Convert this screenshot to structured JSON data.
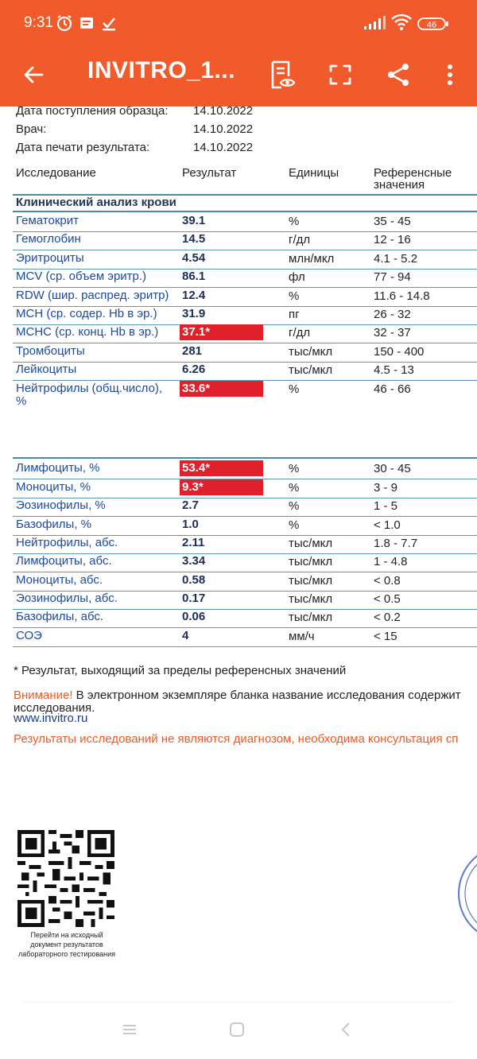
{
  "status_bar": {
    "time": "9:31",
    "battery": "46",
    "left_icons": [
      "alarm-icon",
      "notification-icon",
      "download-done-icon"
    ],
    "right_icons": [
      "signal-icon",
      "wifi-icon",
      "battery-icon"
    ]
  },
  "app_bar": {
    "title": "INVITRO_1...",
    "icons": [
      "back-arrow-icon",
      "reading-mode-icon",
      "fullscreen-icon",
      "share-icon",
      "more-icon"
    ]
  },
  "document": {
    "meta": [
      {
        "label": "Дата поступления образца:",
        "value": "14.10.2022"
      },
      {
        "label": "Врач:",
        "value": "14.10.2022"
      },
      {
        "label": "Дата печати результата:",
        "value": "14.10.2022"
      }
    ],
    "headers": {
      "test": "Исследование",
      "result": "Результат",
      "units": "Единицы",
      "ref_line1": "Референсные",
      "ref_line2": "значения"
    },
    "section_title": "Клинический анализ крови",
    "rows_a": [
      {
        "name": "Гематокрит",
        "value": "39.1",
        "unit": "%",
        "ref": "35 - 45",
        "flag": false
      },
      {
        "name": "Гемоглобин",
        "value": "14.5",
        "unit": "г/дл",
        "ref": "12 - 16",
        "flag": false
      },
      {
        "name": "Эритроциты",
        "value": "4.54",
        "unit": "млн/мкл",
        "ref": "4.1 - 5.2",
        "flag": false
      },
      {
        "name": "MCV (ср. объем эритр.)",
        "value": "86.1",
        "unit": "фл",
        "ref": "77 - 94",
        "flag": false
      },
      {
        "name": "RDW (шир. распред. эритр)",
        "value": "12.4",
        "unit": "%",
        "ref": "11.6 - 14.8",
        "flag": false
      },
      {
        "name": "MCH (ср. содер. Hb в эр.)",
        "value": "31.9",
        "unit": "пг",
        "ref": "26 - 32",
        "flag": false
      },
      {
        "name": "MCHC (ср. конц. Hb в эр.)",
        "value": "37.1*",
        "unit": "г/дл",
        "ref": "32 - 37",
        "flag": true
      },
      {
        "name": "Тромбоциты",
        "value": "281",
        "unit": "тыс/мкл",
        "ref": "150 - 400",
        "flag": false
      },
      {
        "name": "Лейкоциты",
        "value": "6.26",
        "unit": "тыс/мкл",
        "ref": "4.5 - 13",
        "flag": false
      }
    ],
    "neutro_pct": {
      "name_line1": "Нейтрофилы (общ.число),",
      "name_line2": "%",
      "value": "33.6*",
      "unit": "%",
      "ref": "46 - 66"
    },
    "rows_b": [
      {
        "name": "Лимфоциты, %",
        "value": "53.4*",
        "unit": "%",
        "ref": "30 - 45",
        "flag": true
      },
      {
        "name": "Моноциты, %",
        "value": "9.3*",
        "unit": "%",
        "ref": "3 - 9",
        "flag": true
      },
      {
        "name": "Эозинофилы, %",
        "value": "2.7",
        "unit": "%",
        "ref": "1 - 5",
        "flag": false
      },
      {
        "name": "Базофилы, %",
        "value": "1.0",
        "unit": "%",
        "ref": "< 1.0",
        "flag": false
      },
      {
        "name": "Нейтрофилы, абс.",
        "value": "2.11",
        "unit": "тыс/мкл",
        "ref": "1.8 - 7.7",
        "flag": false
      },
      {
        "name": "Лимфоциты, абс.",
        "value": "3.34",
        "unit": "тыс/мкл",
        "ref": "1 - 4.8",
        "flag": false
      },
      {
        "name": "Моноциты, абс.",
        "value": "0.58",
        "unit": "тыс/мкл",
        "ref": "< 0.8",
        "flag": false
      },
      {
        "name": "Эозинофилы, абс.",
        "value": "0.17",
        "unit": "тыс/мкл",
        "ref": "< 0.5",
        "flag": false
      },
      {
        "name": "Базофилы, абс.",
        "value": "0.06",
        "unit": "тыс/мкл",
        "ref": "< 0.2",
        "flag": false
      },
      {
        "name": "СОЭ",
        "value": "4",
        "unit": "мм/ч",
        "ref": "< 15",
        "flag": false
      }
    ],
    "footnote": "* Результат, выходящий за пределы референсных значений",
    "warning_label": "Внимание!",
    "warning_text": "В электронном экземпляре бланка название исследования содержит",
    "warning_text2": "исследования.",
    "website": "www.invitro.ru",
    "disclaimer": "Результаты исследований не являются диагнозом, необходима консультация сп",
    "qr_caption_1": "Перейти на исходный",
    "qr_caption_2": "документ результатов",
    "qr_caption_3": "лабораторного тестирования"
  },
  "colors": {
    "app_bar": "#f15a2b",
    "flag_bg": "#e0202a",
    "test_name": "#1c4aa0",
    "orange_text": "#ee5a24"
  },
  "nav_bar": {
    "icons": [
      "menu-icon",
      "home-square-icon",
      "back-chevron-icon"
    ]
  }
}
